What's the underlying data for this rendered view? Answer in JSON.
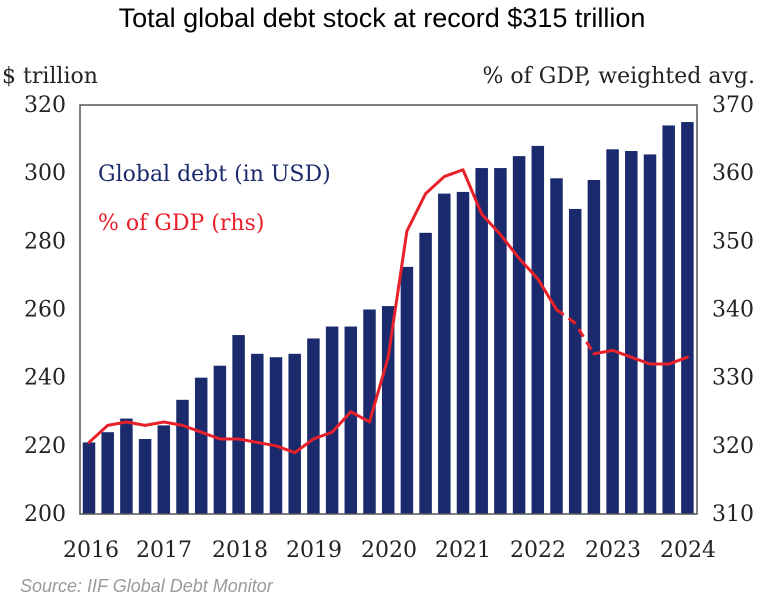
{
  "chart_data": {
    "type": "bar",
    "title": "Total global debt stock at record $315 trillion",
    "ylabel_left": "$ trillion",
    "ylabel_right": "% of GDP, weighted avg.",
    "source": "Source: IIF Global Debt Monitor",
    "ylim_left": [
      200,
      320
    ],
    "yticks_left": [
      "200",
      "220",
      "240",
      "260",
      "280",
      "300",
      "320"
    ],
    "ylim_right": [
      310,
      370
    ],
    "yticks_right": [
      "310",
      "320",
      "330",
      "340",
      "350",
      "360",
      "370"
    ],
    "x_tick_labels": [
      "2016",
      "2017",
      "2018",
      "2019",
      "2020",
      "2021",
      "2022",
      "2023",
      "2024"
    ],
    "legend": [
      {
        "label": "Global debt (in USD)",
        "color": "#1a2a6c"
      },
      {
        "label": "% of GDP (rhs)",
        "color": "#e8202a"
      }
    ],
    "series": [
      {
        "name": "Global debt (in USD)",
        "type": "bar",
        "color": "#1a2a6c",
        "values": [
          221,
          224,
          228,
          222,
          226,
          233.5,
          240,
          243.5,
          252.5,
          247,
          246,
          247,
          251.5,
          255,
          255,
          260,
          261,
          272.5,
          282.5,
          294,
          294.5,
          301.5,
          301.5,
          305,
          308,
          298.5,
          289.5,
          298,
          307,
          306.5,
          305.5,
          314,
          315
        ]
      },
      {
        "name": "% of GDP (rhs)",
        "type": "line",
        "color": "#e8202a",
        "values": [
          320.5,
          323,
          323.5,
          323,
          323.5,
          323,
          322,
          321,
          321,
          320.5,
          320,
          319,
          321,
          322,
          325,
          323.5,
          333,
          351.5,
          357,
          359.5,
          360.5,
          354,
          351,
          347.5,
          344.5,
          340,
          338,
          333.5,
          334,
          333,
          332,
          332,
          333
        ]
      }
    ]
  }
}
